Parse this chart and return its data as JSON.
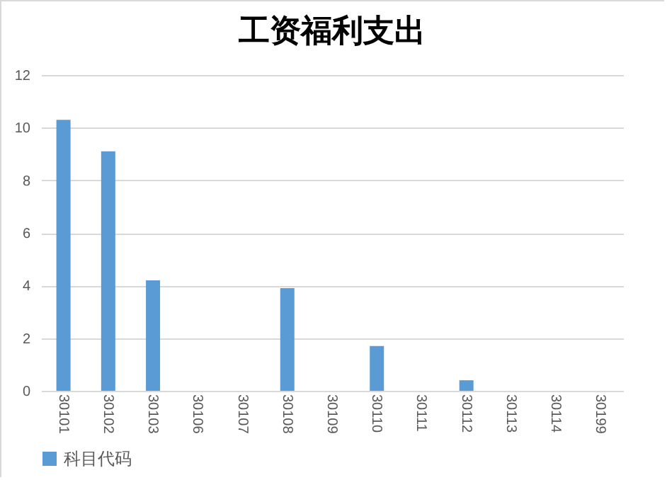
{
  "chart_data": {
    "type": "bar",
    "title": "工资福利支出",
    "categories": [
      "30101",
      "30102",
      "30103",
      "30106",
      "30107",
      "30108",
      "30109",
      "30110",
      "30111",
      "30112",
      "30113",
      "30114",
      "30199"
    ],
    "series": [
      {
        "name": "科目代码",
        "color": "#5b9bd5",
        "values": [
          10.3,
          9.1,
          4.2,
          0,
          0,
          3.9,
          0,
          1.7,
          0,
          0.4,
          0,
          0,
          0
        ]
      }
    ],
    "ylim": [
      0,
      12
    ],
    "yticks": [
      0,
      2,
      4,
      6,
      8,
      10,
      12
    ],
    "grid": "y",
    "legend": "bottom"
  }
}
